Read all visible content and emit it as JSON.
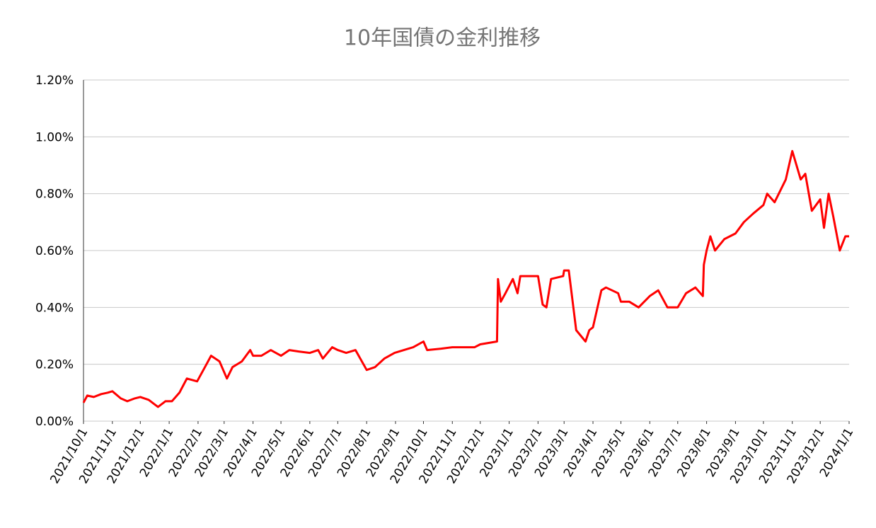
{
  "chart_data": {
    "type": "line",
    "title": "10年国債の金利推移",
    "x": [
      "2021/10/1",
      "2021/10/5",
      "2021/10/12",
      "2021/10/20",
      "2021/10/27",
      "2021/11/1",
      "2021/11/10",
      "2021/11/17",
      "2021/11/25",
      "2021/12/1",
      "2021/12/10",
      "2021/12/20",
      "2021/12/28",
      "2022/1/4",
      "2022/1/12",
      "2022/1/20",
      "2022/1/31",
      "2022/2/10",
      "2022/2/15",
      "2022/2/24",
      "2022/3/4",
      "2022/3/10",
      "2022/3/20",
      "2022/3/29",
      "2022/4/1",
      "2022/4/10",
      "2022/4/20",
      "2022/5/1",
      "2022/5/10",
      "2022/5/20",
      "2022/6/1",
      "2022/6/10",
      "2022/6/15",
      "2022/6/25",
      "2022/7/1",
      "2022/7/10",
      "2022/7/20",
      "2022/8/1",
      "2022/8/10",
      "2022/8/20",
      "2022/8/31",
      "2022/9/10",
      "2022/9/20",
      "2022/10/1",
      "2022/10/5",
      "2022/10/20",
      "2022/11/1",
      "2022/11/15",
      "2022/11/25",
      "2022/12/1",
      "2022/12/10",
      "2022/12/19",
      "2022/12/20",
      "2022/12/23",
      "2022/12/28",
      "2023/1/5",
      "2023/1/10",
      "2023/1/13",
      "2023/1/25",
      "2023/2/1",
      "2023/2/6",
      "2023/2/10",
      "2023/2/15",
      "2023/2/28",
      "2023/3/1",
      "2023/3/6",
      "2023/3/14",
      "2023/3/24",
      "2023/3/28",
      "2023/4/1",
      "2023/4/10",
      "2023/4/15",
      "2023/4/28",
      "2023/5/1",
      "2023/5/10",
      "2023/5/20",
      "2023/6/1",
      "2023/6/10",
      "2023/6/20",
      "2023/7/1",
      "2023/7/10",
      "2023/7/20",
      "2023/7/28",
      "2023/7/29",
      "2023/8/1",
      "2023/8/5",
      "2023/8/10",
      "2023/8/20",
      "2023/9/1",
      "2023/9/10",
      "2023/9/20",
      "2023/10/1",
      "2023/10/5",
      "2023/10/13",
      "2023/10/25",
      "2023/11/1",
      "2023/11/10",
      "2023/11/15",
      "2023/11/22",
      "2023/12/1",
      "2023/12/5",
      "2023/12/10",
      "2023/12/15",
      "2023/12/22",
      "2023/12/28",
      "2024/1/1"
    ],
    "series": [
      {
        "name": "10年国債",
        "color": "#ff0000",
        "values": [
          0.065,
          0.09,
          0.085,
          0.095,
          0.1,
          0.105,
          0.08,
          0.07,
          0.08,
          0.085,
          0.075,
          0.05,
          0.07,
          0.07,
          0.1,
          0.15,
          0.14,
          0.2,
          0.23,
          0.21,
          0.15,
          0.19,
          0.21,
          0.25,
          0.23,
          0.23,
          0.25,
          0.23,
          0.25,
          0.245,
          0.24,
          0.25,
          0.22,
          0.26,
          0.25,
          0.24,
          0.25,
          0.18,
          0.19,
          0.22,
          0.24,
          0.25,
          0.26,
          0.28,
          0.25,
          0.255,
          0.26,
          0.26,
          0.26,
          0.27,
          0.275,
          0.28,
          0.5,
          0.42,
          0.45,
          0.5,
          0.45,
          0.51,
          0.51,
          0.51,
          0.41,
          0.4,
          0.5,
          0.51,
          0.53,
          0.53,
          0.32,
          0.28,
          0.32,
          0.33,
          0.46,
          0.47,
          0.45,
          0.42,
          0.42,
          0.4,
          0.44,
          0.46,
          0.4,
          0.4,
          0.45,
          0.47,
          0.44,
          0.55,
          0.6,
          0.65,
          0.6,
          0.64,
          0.66,
          0.7,
          0.73,
          0.76,
          0.8,
          0.77,
          0.85,
          0.95,
          0.85,
          0.87,
          0.74,
          0.78,
          0.68,
          0.8,
          0.72,
          0.6,
          0.65,
          0.65
        ]
      }
    ],
    "xlim": [
      "2021/10/1",
      "2024/1/1"
    ],
    "xticks": [
      "2021/10/1",
      "2021/11/1",
      "2021/12/1",
      "2022/1/1",
      "2022/2/1",
      "2022/3/1",
      "2022/4/1",
      "2022/5/1",
      "2022/6/1",
      "2022/7/1",
      "2022/8/1",
      "2022/9/1",
      "2022/10/1",
      "2022/11/1",
      "2022/12/1",
      "2023/1/1",
      "2023/2/1",
      "2023/3/1",
      "2023/4/1",
      "2023/5/1",
      "2023/6/1",
      "2023/7/1",
      "2023/8/1",
      "2023/9/1",
      "2023/10/1",
      "2023/11/1",
      "2023/12/1",
      "2024/1/1"
    ],
    "ylim": [
      0,
      1.2
    ],
    "yticks": [
      {
        "value": 0,
        "label": "0.00%"
      },
      {
        "value": 0.2,
        "label": "0.20%"
      },
      {
        "value": 0.4,
        "label": "0.40%"
      },
      {
        "value": 0.6,
        "label": "0.60%"
      },
      {
        "value": 0.8,
        "label": "0.80%"
      },
      {
        "value": 1,
        "label": "1.00%"
      },
      {
        "value": 1.2,
        "label": "1.20%"
      }
    ],
    "grid": true
  }
}
